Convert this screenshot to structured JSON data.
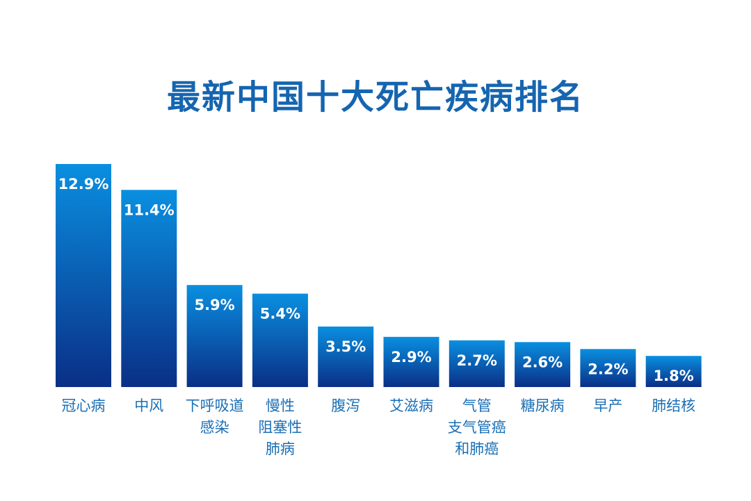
{
  "chart_data": {
    "type": "bar",
    "title": "最新中国十大死亡疾病排名",
    "categories": [
      "冠心病",
      "中风",
      "下呼吸道\n感染",
      "慢性\n阻塞性\n肺病",
      "腹泻",
      "艾滋病",
      "气管\n支气管癌\n和肺癌",
      "糖尿病",
      "早产",
      "肺结核"
    ],
    "values": [
      12.9,
      11.4,
      5.9,
      5.4,
      3.5,
      2.9,
      2.7,
      2.6,
      2.2,
      1.8
    ],
    "data_labels": [
      "12.9%",
      "11.4%",
      "5.9%",
      "5.4%",
      "3.5%",
      "2.9%",
      "2.7%",
      "2.6%",
      "2.2%",
      "1.8%"
    ],
    "xlabel": "",
    "ylabel": "",
    "ylim": [
      0,
      12.9
    ],
    "grid": false,
    "colors": {
      "bar_top": "#0a8fe0",
      "bar_bottom": "#0a2f86",
      "label": "#ffffff",
      "category": "#1a6fb5",
      "title": "#1565b0"
    }
  }
}
